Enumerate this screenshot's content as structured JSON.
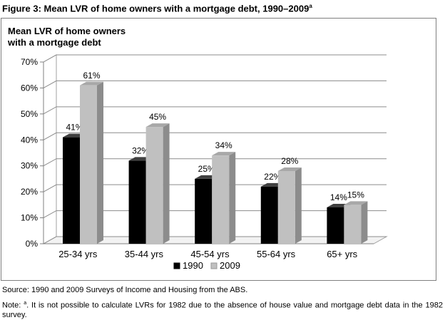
{
  "figure": {
    "title": "Figure 3: Mean LVR of home owners with a mortgage debt, 1990–2009",
    "title_sup": "a",
    "source": "Source: 1990 and 2009 Surveys of Income and Housing from the ABS.",
    "note_prefix": "Note: ",
    "note_sup": "a",
    "note_text": ". It is not possible to calculate LVRs for 1982 due to the absence of house value and mortgage debt data in the 1982 survey."
  },
  "chart_data": {
    "type": "bar",
    "title_line1": "Mean LVR of home owners",
    "title_line2": "with a mortgage debt",
    "categories": [
      "25-34 yrs",
      "35-44 yrs",
      "45-54 yrs",
      "55-64 yrs",
      "65+ yrs"
    ],
    "series": [
      {
        "name": "1990",
        "values": [
          41,
          32,
          25,
          22,
          14
        ],
        "labels": [
          "41%",
          "32%",
          "25%",
          "22%",
          "14%"
        ],
        "color": "#000000",
        "side": "#303030",
        "top": "#404040"
      },
      {
        "name": "2009",
        "values": [
          61,
          45,
          34,
          28,
          15
        ],
        "labels": [
          "61%",
          "45%",
          "34%",
          "28%",
          "15%"
        ],
        "color": "#c0c0c0",
        "side": "#8c8c8c",
        "top": "#a8a8a8"
      }
    ],
    "ylim": [
      0,
      70
    ],
    "yticks": [
      0,
      10,
      20,
      30,
      40,
      50,
      60,
      70
    ],
    "ytick_labels": [
      "0%",
      "10%",
      "20%",
      "30%",
      "40%",
      "50%",
      "60%",
      "70%"
    ],
    "grid": true,
    "legend": "bottom",
    "three_d": true
  }
}
